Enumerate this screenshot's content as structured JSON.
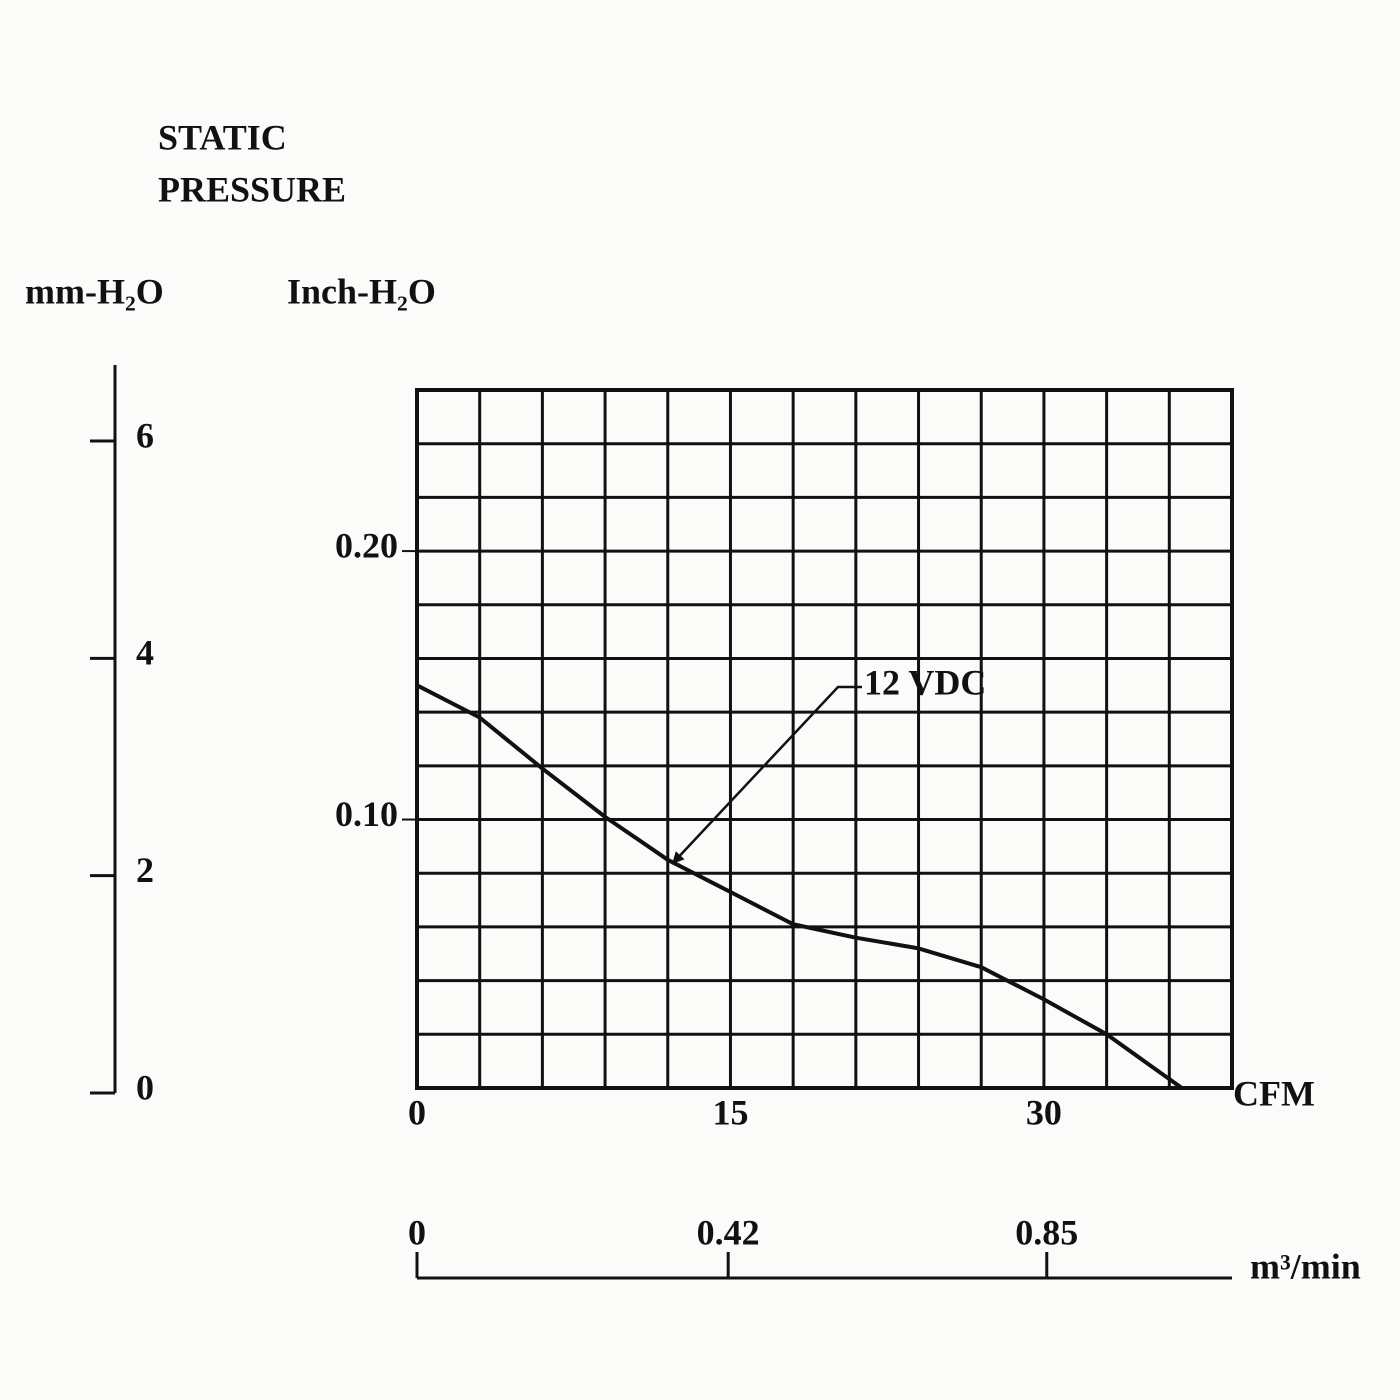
{
  "chart_data": {
    "type": "line",
    "title": [
      "STATIC",
      "PRESSURE"
    ],
    "ylabel": "Inch-H₂O",
    "y2label": "mm-H₂O",
    "xlabel": "CFM",
    "x2label": "m³/min",
    "x": [
      0,
      3,
      6,
      9,
      12,
      15,
      18,
      21,
      24,
      27,
      30,
      33,
      36.6
    ],
    "series": [
      {
        "name": "12 VDC",
        "color": "#111111",
        "values": [
          0.15,
          0.138,
          0.119,
          0.101,
          0.085,
          0.073,
          0.061,
          0.056,
          0.052,
          0.045,
          0.033,
          0.02,
          0
        ]
      }
    ],
    "xlim": [
      0,
      39
    ],
    "xticks": [
      0,
      15,
      30
    ],
    "ylim": [
      0,
      0.26
    ],
    "yticks": [
      {
        "value": 0.1,
        "label": "0.10"
      },
      {
        "value": 0.2,
        "label": "0.20"
      }
    ],
    "y2lim": [
      0,
      6.7
    ],
    "y2ticks": [
      0,
      2,
      4,
      6
    ],
    "x2lim": [
      0,
      1.1
    ],
    "x2ticks": [
      0,
      0.42,
      0.85
    ],
    "x_grid": [
      0,
      3,
      6,
      9,
      12,
      15,
      18,
      21,
      24,
      27,
      30,
      33,
      36,
      39
    ],
    "y_grid": [
      0,
      0.02,
      0.04,
      0.06,
      0.08,
      0.1,
      0.12,
      0.14,
      0.16,
      0.18,
      0.2,
      0.22,
      0.24,
      0.26
    ],
    "grid": true
  }
}
